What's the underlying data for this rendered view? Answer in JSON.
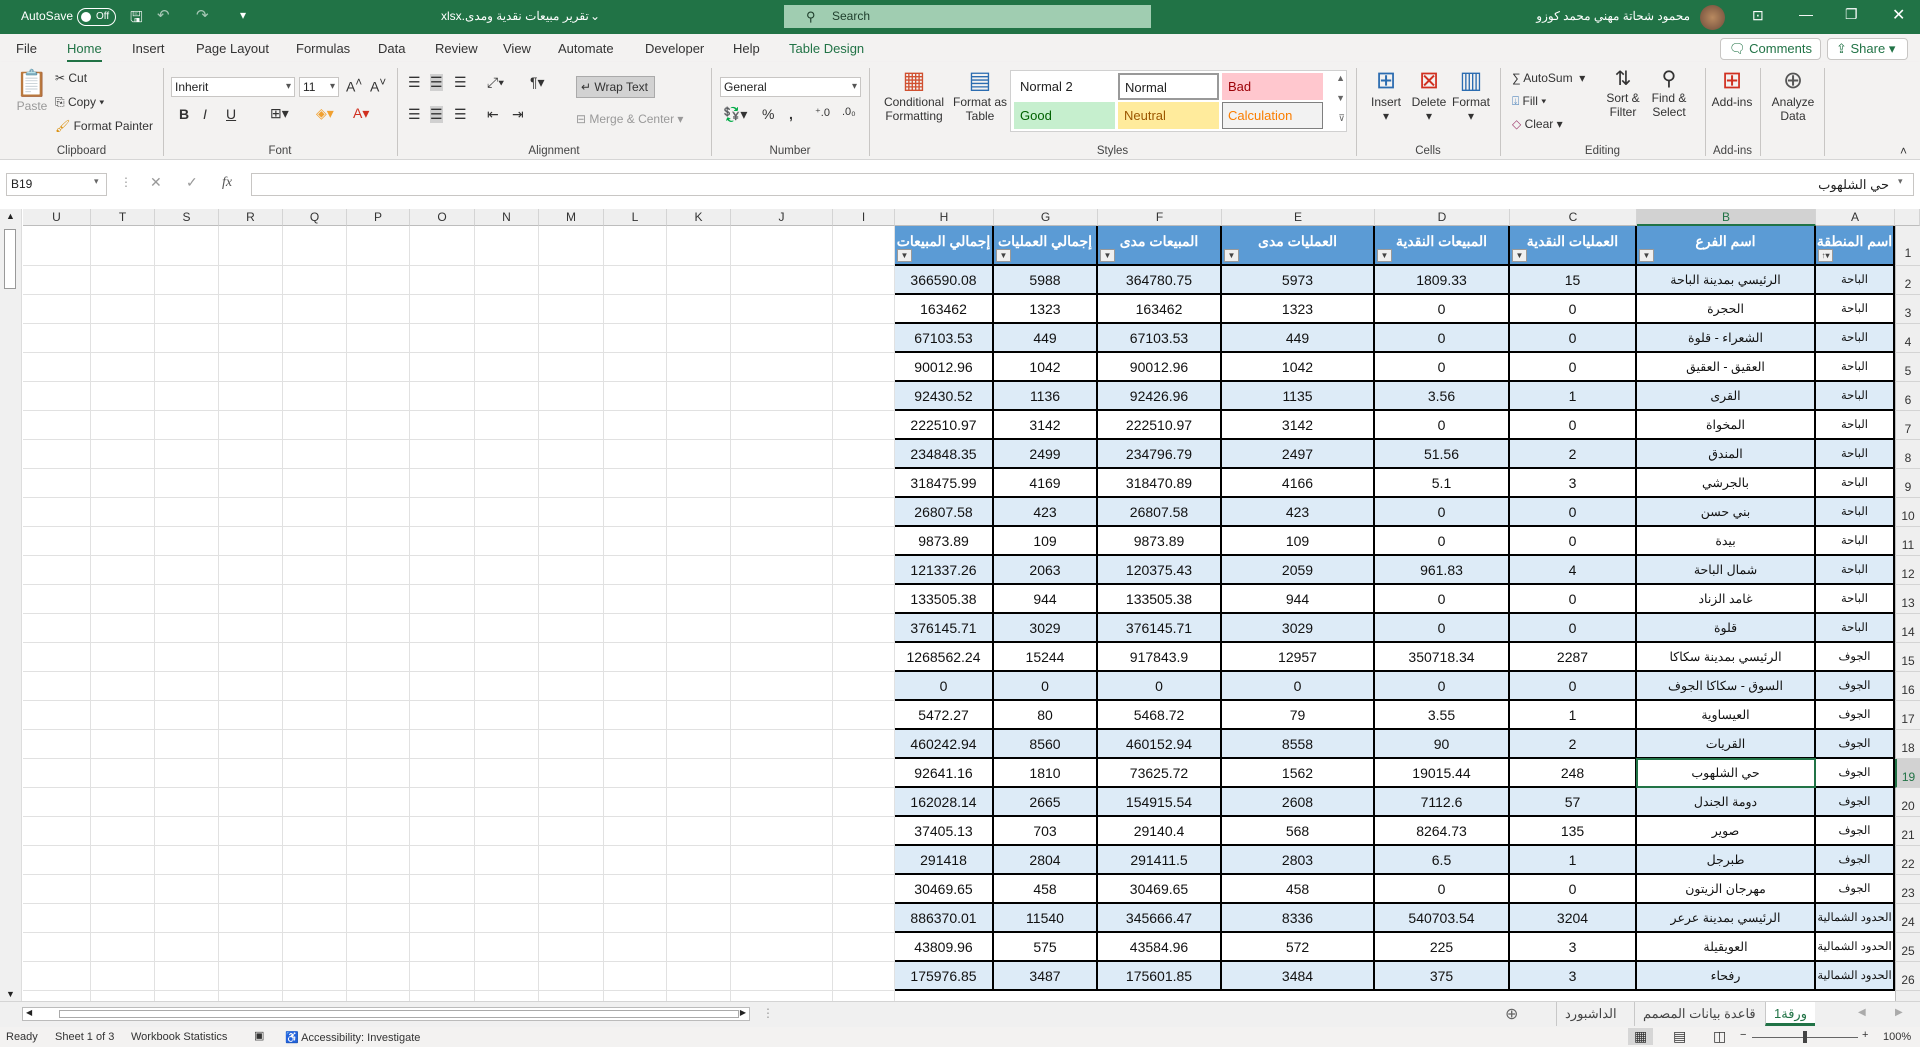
{
  "titlebar": {
    "autosave_label": "AutoSave",
    "autosave_state": "Off",
    "filename": "تقرير مبيعات نقدية ومدى.xlsx",
    "search_placeholder": "Search",
    "user_name": "محمود شحاتة مهني محمد كوزو"
  },
  "menu": {
    "tabs": [
      "File",
      "Home",
      "Insert",
      "Page Layout",
      "Formulas",
      "Data",
      "Review",
      "View",
      "Automate",
      "Developer",
      "Help",
      "Table Design"
    ],
    "active": "Home",
    "comments": "Comments",
    "share": "Share"
  },
  "ribbon": {
    "clipboard": {
      "paste": "Paste",
      "cut": "Cut",
      "copy": "Copy",
      "format_painter": "Format Painter",
      "label": "Clipboard"
    },
    "font": {
      "name": "Inherit",
      "size": "11",
      "label": "Font",
      "bold": "B",
      "italic": "I",
      "underline": "U"
    },
    "alignment": {
      "wrap_text": "Wrap Text",
      "merge_center": "Merge & Center",
      "label": "Alignment"
    },
    "number": {
      "format": "General",
      "label": "Number"
    },
    "styles": {
      "conditional_formatting": [
        "Conditional",
        "Formatting"
      ],
      "format_as_table": [
        "Format as",
        "Table"
      ],
      "cells": [
        "Normal 2",
        "Normal",
        "Bad",
        "Good",
        "Neutral",
        "Calculation"
      ],
      "label": "Styles"
    },
    "cells": {
      "insert": "Insert",
      "delete": "Delete",
      "format": "Format",
      "label": "Cells"
    },
    "editing": {
      "autosum": "AutoSum",
      "fill": "Fill",
      "clear": "Clear",
      "sort_filter": [
        "Sort &",
        "Filter"
      ],
      "find_select": [
        "Find &",
        "Select"
      ],
      "label": "Editing"
    },
    "addins": {
      "addins": "Add-ins",
      "analyze": [
        "Analyze",
        "Data"
      ],
      "label": "Add-ins"
    }
  },
  "formula_bar": {
    "name_box": "B19",
    "value": "حي الشلهوب",
    "fx": "fx"
  },
  "columns": [
    "U",
    "T",
    "S",
    "R",
    "Q",
    "P",
    "O",
    "N",
    "M",
    "L",
    "K",
    "J",
    "I",
    "H",
    "G",
    "F",
    "E",
    "D",
    "C",
    "B",
    "A"
  ],
  "selected_cell": "B19",
  "table": {
    "headers": [
      "اسم المنطقة",
      "اسم الفرع",
      "العمليات النقدية",
      "المبيعات النقدية",
      "العمليات  مدى",
      "المبيعات مدى",
      "إجمالي العمليات",
      "إجمالي المبيعات"
    ],
    "first_row_number": 2,
    "rows": [
      [
        "الباحة",
        "الرئيسي بمدينة الباحة",
        "15",
        "1809.33",
        "5973",
        "364780.75",
        "5988",
        "366590.08"
      ],
      [
        "الباحة",
        "الحجرة",
        "0",
        "0",
        "1323",
        "163462",
        "1323",
        "163462"
      ],
      [
        "الباحة",
        "الشعراء - قلوة",
        "0",
        "0",
        "449",
        "67103.53",
        "449",
        "67103.53"
      ],
      [
        "الباحة",
        "العقيق - العقيق",
        "0",
        "0",
        "1042",
        "90012.96",
        "1042",
        "90012.96"
      ],
      [
        "الباحة",
        "القرى",
        "1",
        "3.56",
        "1135",
        "92426.96",
        "1136",
        "92430.52"
      ],
      [
        "الباحة",
        "المخواة",
        "0",
        "0",
        "3142",
        "222510.97",
        "3142",
        "222510.97"
      ],
      [
        "الباحة",
        "المندق",
        "2",
        "51.56",
        "2497",
        "234796.79",
        "2499",
        "234848.35"
      ],
      [
        "الباحة",
        "بالجرشي",
        "3",
        "5.1",
        "4166",
        "318470.89",
        "4169",
        "318475.99"
      ],
      [
        "الباحة",
        "بني حسن",
        "0",
        "0",
        "423",
        "26807.58",
        "423",
        "26807.58"
      ],
      [
        "الباحة",
        "بيدة",
        "0",
        "0",
        "109",
        "9873.89",
        "109",
        "9873.89"
      ],
      [
        "الباحة",
        "شمال الباحة",
        "4",
        "961.83",
        "2059",
        "120375.43",
        "2063",
        "121337.26"
      ],
      [
        "الباحة",
        "غامد الزناد",
        "0",
        "0",
        "944",
        "133505.38",
        "944",
        "133505.38"
      ],
      [
        "الباحة",
        "قلوة",
        "0",
        "0",
        "3029",
        "376145.71",
        "3029",
        "376145.71"
      ],
      [
        "الجوف",
        "الرئيسي بمدينة سكاكا",
        "2287",
        "350718.34",
        "12957",
        "917843.9",
        "15244",
        "1268562.24"
      ],
      [
        "الجوف",
        "السوق - سكاكا الجوف",
        "0",
        "0",
        "0",
        "0",
        "0",
        "0"
      ],
      [
        "الجوف",
        "العيساوية",
        "1",
        "3.55",
        "79",
        "5468.72",
        "80",
        "5472.27"
      ],
      [
        "الجوف",
        "القريات",
        "2",
        "90",
        "8558",
        "460152.94",
        "8560",
        "460242.94"
      ],
      [
        "الجوف",
        "حي الشلهوب",
        "248",
        "19015.44",
        "1562",
        "73625.72",
        "1810",
        "92641.16"
      ],
      [
        "الجوف",
        "دومة الجندل",
        "57",
        "7112.6",
        "2608",
        "154915.54",
        "2665",
        "162028.14"
      ],
      [
        "الجوف",
        "صوير",
        "135",
        "8264.73",
        "568",
        "29140.4",
        "703",
        "37405.13"
      ],
      [
        "الجوف",
        "طبرجل",
        "1",
        "6.5",
        "2803",
        "291411.5",
        "2804",
        "291418"
      ],
      [
        "الجوف",
        "مهرجان الزيتون",
        "0",
        "0",
        "458",
        "30469.65",
        "458",
        "30469.65"
      ],
      [
        "الحدود الشمالية",
        "الرئيسي بمدينة عرعر",
        "3204",
        "540703.54",
        "8336",
        "345666.47",
        "11540",
        "886370.01"
      ],
      [
        "الحدود الشمالية",
        "العويقيلة",
        "3",
        "225",
        "572",
        "43584.96",
        "575",
        "43809.96"
      ],
      [
        "الحدود الشمالية",
        "رفحاء",
        "3",
        "375",
        "3484",
        "175601.85",
        "3487",
        "175976.85"
      ]
    ]
  },
  "sheet_tabs": {
    "tabs": [
      "ورقة1",
      "قاعدة بيانات المصمم",
      "الداشبورد"
    ],
    "active": "ورقة1"
  },
  "statusbar": {
    "ready": "Ready",
    "sheet": "Sheet 1 of 3",
    "workbook_stats": "Workbook Statistics",
    "accessibility": "Accessibility: Investigate",
    "zoom": "100%",
    "zoom_percent": 100
  },
  "colors": {
    "accent": "#217346",
    "table_header": "#5b9bd5",
    "band": "#ddebf7"
  }
}
